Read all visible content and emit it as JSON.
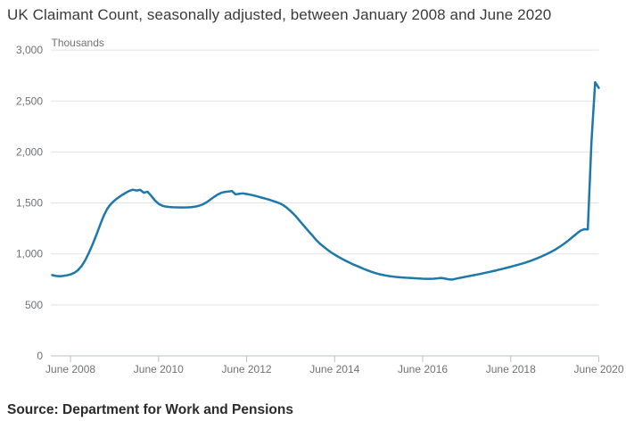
{
  "header": {
    "title": "UK Claimant Count, seasonally adjusted, between January 2008 and June 2020"
  },
  "source": {
    "label": "Source: Department for Work and Pensions"
  },
  "chart_data": {
    "type": "line",
    "title": "UK Claimant Count, seasonally adjusted, between January 2008 and June 2020",
    "xlabel": "",
    "ylabel": "Thousands",
    "unit_label": "Thousands",
    "ylim": [
      0,
      3000
    ],
    "grid": "horizontal gridlines on",
    "legend": "none",
    "x_start": "January 2008",
    "x_end": "June 2020",
    "frequency": "monthly",
    "y_ticks": [
      {
        "value": 0,
        "label": "0"
      },
      {
        "value": 500,
        "label": "500"
      },
      {
        "value": 1000,
        "label": "1,000"
      },
      {
        "value": 1500,
        "label": "1,500"
      },
      {
        "value": 2000,
        "label": "2,000"
      },
      {
        "value": 2500,
        "label": "2,500"
      },
      {
        "value": 3000,
        "label": "3,000"
      }
    ],
    "x_ticks": [
      {
        "month_index": 5,
        "label": "June 2008"
      },
      {
        "month_index": 29,
        "label": "June 2010"
      },
      {
        "month_index": 53,
        "label": "June 2012"
      },
      {
        "month_index": 77,
        "label": "June 2014"
      },
      {
        "month_index": 101,
        "label": "June 2016"
      },
      {
        "month_index": 125,
        "label": "June 2018"
      },
      {
        "month_index": 149,
        "label": "June 2020"
      }
    ],
    "series": [
      {
        "name": "UK Claimant Count (thousands, seasonally adjusted)",
        "start": "January 2008",
        "values": [
          793,
          784,
          781,
          784,
          790,
          799,
          814,
          840,
          880,
          938,
          1010,
          1092,
          1182,
          1278,
          1370,
          1442,
          1490,
          1524,
          1552,
          1577,
          1598,
          1618,
          1630,
          1622,
          1628,
          1600,
          1610,
          1570,
          1525,
          1492,
          1473,
          1464,
          1460,
          1458,
          1457,
          1456,
          1456,
          1457,
          1459,
          1464,
          1472,
          1485,
          1505,
          1530,
          1556,
          1580,
          1598,
          1608,
          1612,
          1617,
          1584,
          1590,
          1594,
          1588,
          1581,
          1573,
          1563,
          1553,
          1544,
          1534,
          1522,
          1510,
          1497,
          1478,
          1452,
          1420,
          1385,
          1345,
          1302,
          1260,
          1218,
          1178,
          1135,
          1100,
          1070,
          1042,
          1016,
          993,
          972,
          952,
          933,
          915,
          898,
          883,
          868,
          852,
          838,
          825,
          813,
          803,
          795,
          788,
          782,
          777,
          773,
          770,
          768,
          765,
          763,
          761,
          759,
          757,
          756,
          756,
          757,
          760,
          764,
          759,
          751,
          748,
          756,
          764,
          771,
          778,
          785,
          792,
          799,
          806,
          814,
          822,
          830,
          838,
          847,
          856,
          865,
          874,
          884,
          894,
          904,
          915,
          927,
          940,
          954,
          969,
          985,
          1002,
          1020,
          1040,
          1062,
          1086,
          1112,
          1140,
          1170,
          1200,
          1228,
          1242,
          1240,
          2100,
          2684,
          2628
        ]
      }
    ],
    "colors": {
      "line": "#1e78aa",
      "grid": "#e2e2e2",
      "axis": "#b8c2ca",
      "tick_text": "#6f7173",
      "title_text": "#3a3a3a",
      "source_text": "#2b2b2b"
    },
    "source": "Source: Department for Work and Pensions"
  }
}
